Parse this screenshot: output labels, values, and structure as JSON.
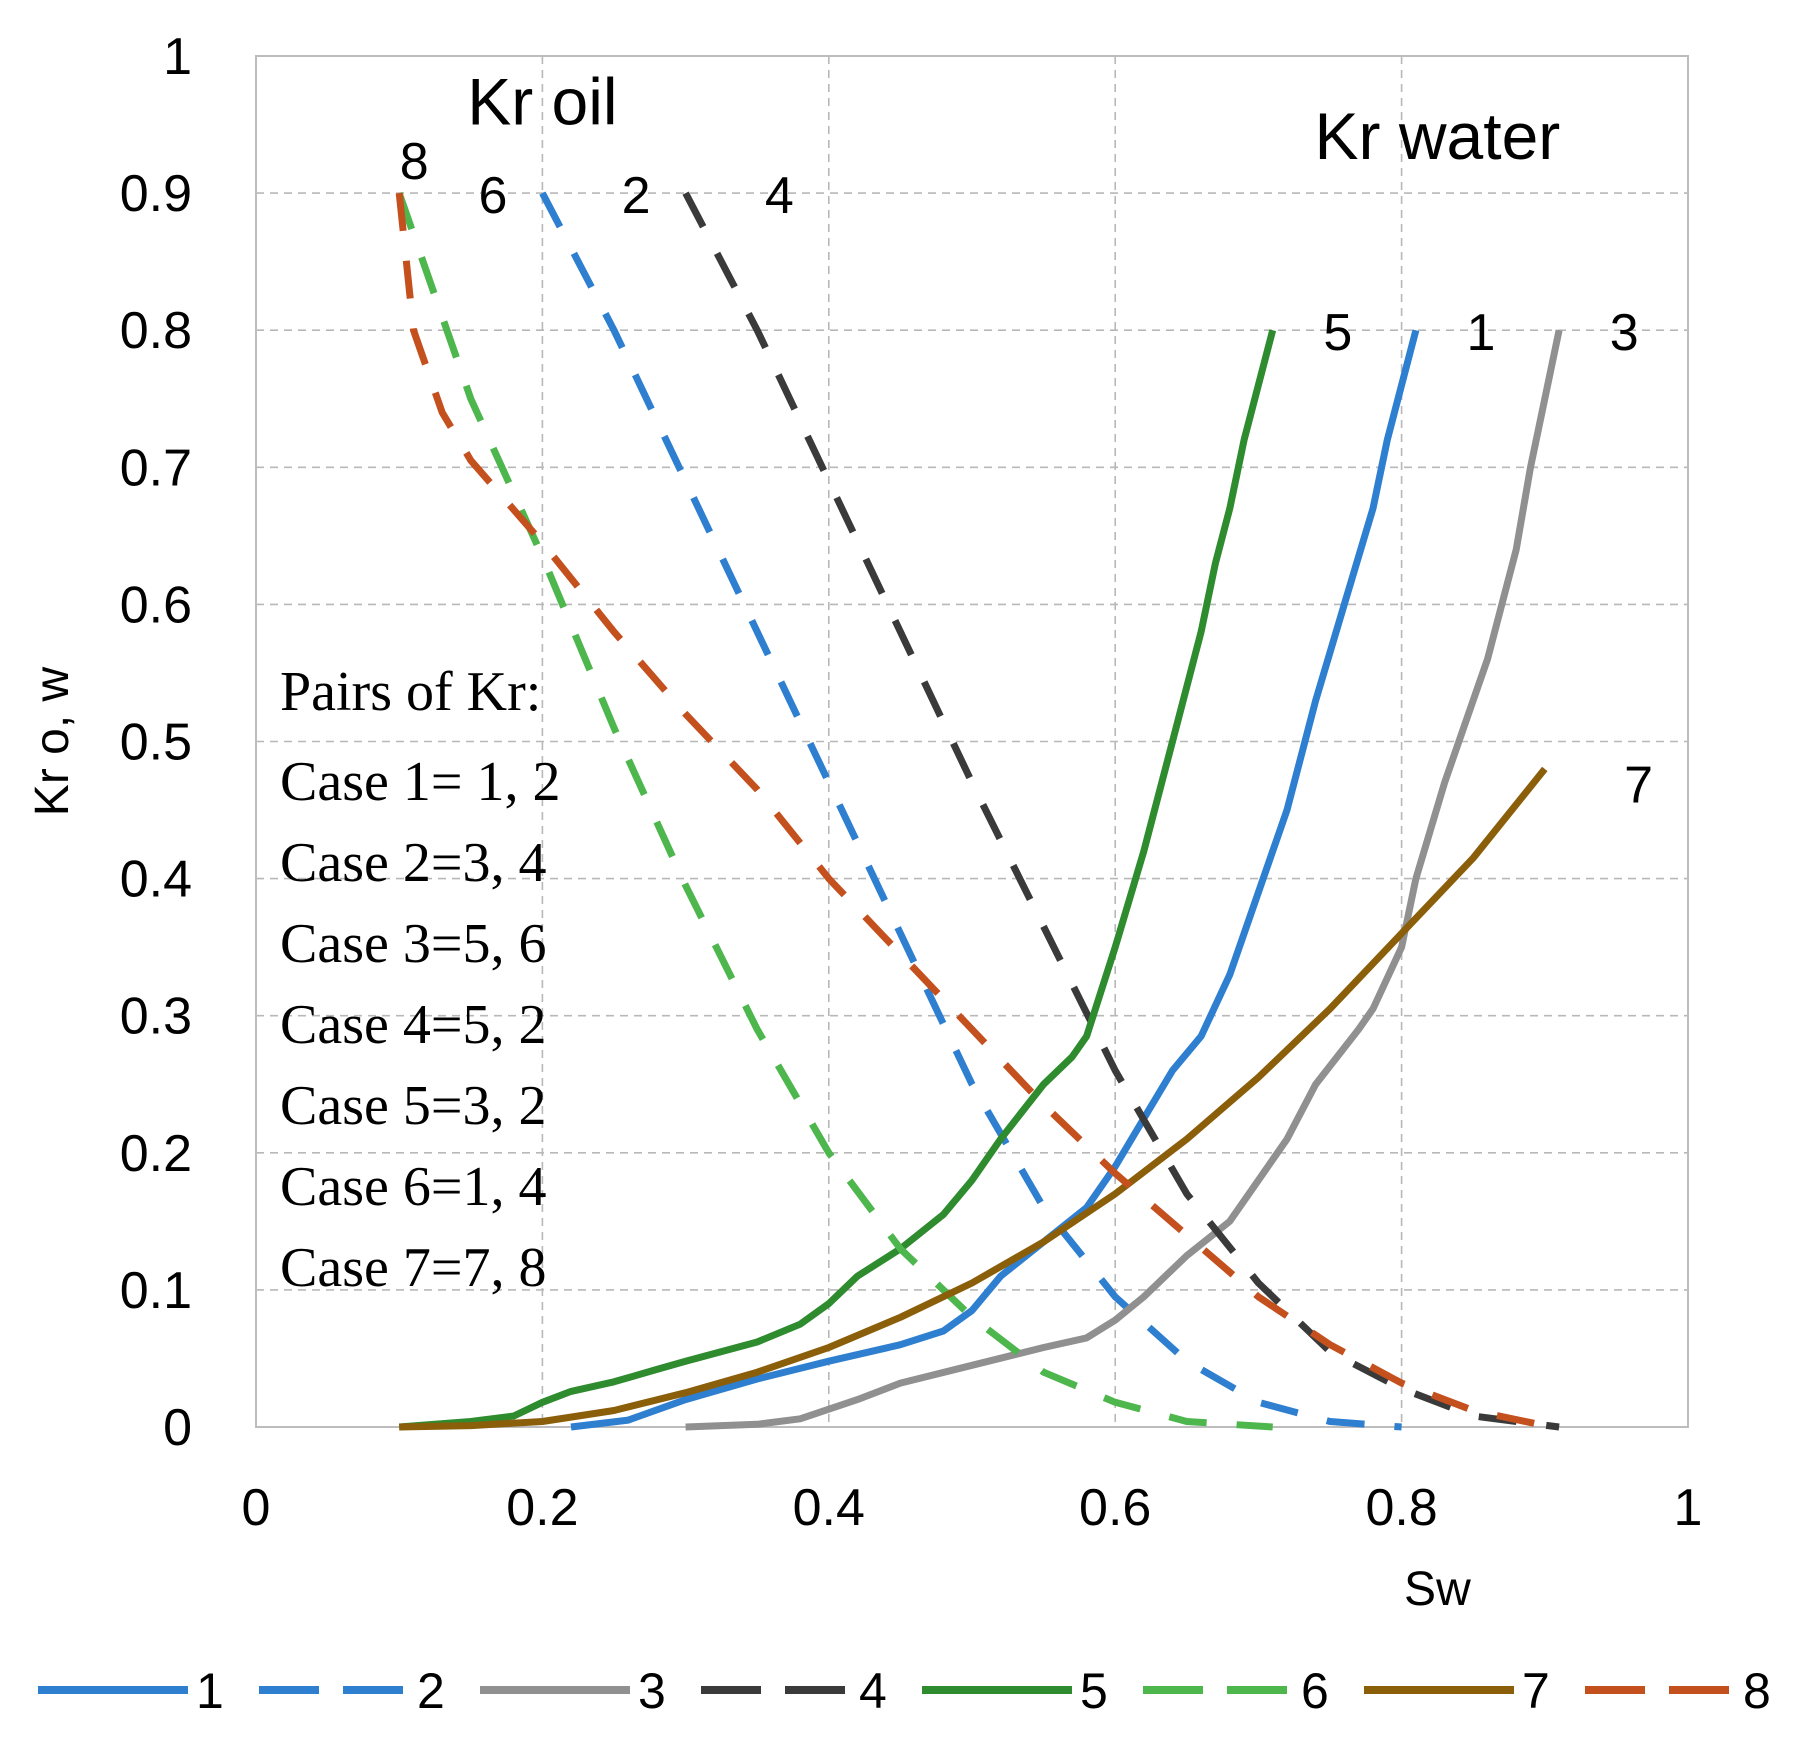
{
  "chart_data": {
    "type": "line",
    "xlabel": "Sw",
    "ylabel": "Kr o, w",
    "xlim": [
      0,
      1
    ],
    "ylim": [
      0,
      1
    ],
    "x_ticks": [
      "0",
      "0.2",
      "0.4",
      "0.6",
      "0.8",
      "1"
    ],
    "y_ticks": [
      "0",
      "0.1",
      "0.2",
      "0.3",
      "0.4",
      "0.5",
      "0.6",
      "0.7",
      "0.8",
      "0.9",
      "1"
    ],
    "grid": true,
    "legend_position": "bottom",
    "annotations": {
      "kr_oil": "Kr oil",
      "kr_water": "Kr water",
      "pairs_title": "Pairs  of Kr:",
      "cases": [
        "Case 1= 1, 2",
        "Case 2=3, 4",
        "Case 3=5, 6",
        "Case 4=5, 2",
        "Case 5=3, 2",
        "Case 6=1, 4",
        "Case 7=7, 8"
      ]
    },
    "series": [
      {
        "name": "1",
        "color": "#2e7fd0",
        "dash": "solid",
        "label_at": [
          0.83,
          0.8
        ],
        "points": [
          [
            0.22,
            0
          ],
          [
            0.26,
            0.005
          ],
          [
            0.3,
            0.02
          ],
          [
            0.35,
            0.035
          ],
          [
            0.4,
            0.048
          ],
          [
            0.45,
            0.06
          ],
          [
            0.48,
            0.07
          ],
          [
            0.5,
            0.085
          ],
          [
            0.52,
            0.11
          ],
          [
            0.55,
            0.135
          ],
          [
            0.58,
            0.16
          ],
          [
            0.6,
            0.19
          ],
          [
            0.62,
            0.225
          ],
          [
            0.64,
            0.26
          ],
          [
            0.66,
            0.285
          ],
          [
            0.68,
            0.33
          ],
          [
            0.7,
            0.39
          ],
          [
            0.72,
            0.45
          ],
          [
            0.74,
            0.53
          ],
          [
            0.76,
            0.6
          ],
          [
            0.78,
            0.67
          ],
          [
            0.79,
            0.72
          ],
          [
            0.8,
            0.76
          ],
          [
            0.81,
            0.8
          ]
        ]
      },
      {
        "name": "2",
        "color": "#2e7fd0",
        "dash": "dashed",
        "label_at": [
          0.24,
          0.9
        ],
        "points": [
          [
            0.2,
            0.9
          ],
          [
            0.25,
            0.8
          ],
          [
            0.3,
            0.69
          ],
          [
            0.35,
            0.58
          ],
          [
            0.4,
            0.47
          ],
          [
            0.45,
            0.36
          ],
          [
            0.5,
            0.25
          ],
          [
            0.55,
            0.16
          ],
          [
            0.6,
            0.095
          ],
          [
            0.65,
            0.048
          ],
          [
            0.7,
            0.018
          ],
          [
            0.75,
            0.004
          ],
          [
            0.8,
            0
          ]
        ]
      },
      {
        "name": "3",
        "color": "#909090",
        "dash": "solid",
        "label_at": [
          0.93,
          0.8
        ],
        "points": [
          [
            0.3,
            0
          ],
          [
            0.35,
            0.002
          ],
          [
            0.38,
            0.006
          ],
          [
            0.42,
            0.02
          ],
          [
            0.45,
            0.032
          ],
          [
            0.5,
            0.045
          ],
          [
            0.55,
            0.058
          ],
          [
            0.58,
            0.065
          ],
          [
            0.6,
            0.078
          ],
          [
            0.62,
            0.095
          ],
          [
            0.65,
            0.125
          ],
          [
            0.68,
            0.15
          ],
          [
            0.7,
            0.18
          ],
          [
            0.72,
            0.21
          ],
          [
            0.74,
            0.25
          ],
          [
            0.77,
            0.29
          ],
          [
            0.78,
            0.305
          ],
          [
            0.8,
            0.35
          ],
          [
            0.81,
            0.4
          ],
          [
            0.83,
            0.47
          ],
          [
            0.86,
            0.56
          ],
          [
            0.88,
            0.64
          ],
          [
            0.89,
            0.7
          ],
          [
            0.9,
            0.75
          ],
          [
            0.91,
            0.8
          ]
        ]
      },
      {
        "name": "4",
        "color": "#3a3a3a",
        "dash": "dashed",
        "label_at": [
          0.34,
          0.9
        ],
        "points": [
          [
            0.3,
            0.9
          ],
          [
            0.35,
            0.8
          ],
          [
            0.4,
            0.69
          ],
          [
            0.45,
            0.58
          ],
          [
            0.5,
            0.47
          ],
          [
            0.55,
            0.365
          ],
          [
            0.6,
            0.26
          ],
          [
            0.65,
            0.17
          ],
          [
            0.7,
            0.105
          ],
          [
            0.75,
            0.055
          ],
          [
            0.8,
            0.028
          ],
          [
            0.85,
            0.008
          ],
          [
            0.91,
            0
          ]
        ]
      },
      {
        "name": "5",
        "color": "#2e8b2e",
        "dash": "solid",
        "label_at": [
          0.73,
          0.8
        ],
        "points": [
          [
            0.1,
            0
          ],
          [
            0.15,
            0.004
          ],
          [
            0.18,
            0.008
          ],
          [
            0.2,
            0.018
          ],
          [
            0.22,
            0.026
          ],
          [
            0.25,
            0.033
          ],
          [
            0.28,
            0.042
          ],
          [
            0.3,
            0.048
          ],
          [
            0.35,
            0.062
          ],
          [
            0.38,
            0.075
          ],
          [
            0.4,
            0.09
          ],
          [
            0.42,
            0.11
          ],
          [
            0.45,
            0.13
          ],
          [
            0.48,
            0.155
          ],
          [
            0.5,
            0.18
          ],
          [
            0.52,
            0.21
          ],
          [
            0.55,
            0.25
          ],
          [
            0.57,
            0.27
          ],
          [
            0.58,
            0.285
          ],
          [
            0.6,
            0.35
          ],
          [
            0.62,
            0.42
          ],
          [
            0.64,
            0.5
          ],
          [
            0.66,
            0.58
          ],
          [
            0.67,
            0.63
          ],
          [
            0.68,
            0.67
          ],
          [
            0.69,
            0.72
          ],
          [
            0.7,
            0.76
          ],
          [
            0.71,
            0.8
          ]
        ]
      },
      {
        "name": "6",
        "color": "#4db64d",
        "dash": "dashed",
        "label_at": [
          0.14,
          0.9
        ],
        "points": [
          [
            0.1,
            0.9
          ],
          [
            0.15,
            0.75
          ],
          [
            0.2,
            0.635
          ],
          [
            0.25,
            0.51
          ],
          [
            0.3,
            0.395
          ],
          [
            0.35,
            0.29
          ],
          [
            0.4,
            0.2
          ],
          [
            0.45,
            0.13
          ],
          [
            0.5,
            0.08
          ],
          [
            0.55,
            0.04
          ],
          [
            0.6,
            0.018
          ],
          [
            0.65,
            0.004
          ],
          [
            0.71,
            0
          ]
        ]
      },
      {
        "name": "7",
        "color": "#8b5e0a",
        "dash": "solid",
        "label_at": [
          0.94,
          0.47
        ],
        "points": [
          [
            0.1,
            0
          ],
          [
            0.15,
            0.001
          ],
          [
            0.2,
            0.004
          ],
          [
            0.25,
            0.012
          ],
          [
            0.3,
            0.025
          ],
          [
            0.35,
            0.04
          ],
          [
            0.4,
            0.058
          ],
          [
            0.45,
            0.08
          ],
          [
            0.5,
            0.105
          ],
          [
            0.55,
            0.135
          ],
          [
            0.6,
            0.17
          ],
          [
            0.65,
            0.21
          ],
          [
            0.7,
            0.255
          ],
          [
            0.75,
            0.305
          ],
          [
            0.8,
            0.36
          ],
          [
            0.85,
            0.415
          ],
          [
            0.9,
            0.48
          ]
        ]
      },
      {
        "name": "8",
        "color": "#c4501e",
        "dash": "dashed",
        "label_at": [
          0.085,
          0.925
        ],
        "points": [
          [
            0.1,
            0.9
          ],
          [
            0.105,
            0.85
          ],
          [
            0.11,
            0.8
          ],
          [
            0.13,
            0.74
          ],
          [
            0.15,
            0.705
          ],
          [
            0.2,
            0.645
          ],
          [
            0.25,
            0.58
          ],
          [
            0.3,
            0.52
          ],
          [
            0.35,
            0.465
          ],
          [
            0.4,
            0.4
          ],
          [
            0.45,
            0.345
          ],
          [
            0.5,
            0.29
          ],
          [
            0.55,
            0.235
          ],
          [
            0.6,
            0.185
          ],
          [
            0.65,
            0.14
          ],
          [
            0.7,
            0.095
          ],
          [
            0.75,
            0.06
          ],
          [
            0.8,
            0.032
          ],
          [
            0.85,
            0.012
          ],
          [
            0.9,
            0.001
          ]
        ]
      }
    ]
  }
}
